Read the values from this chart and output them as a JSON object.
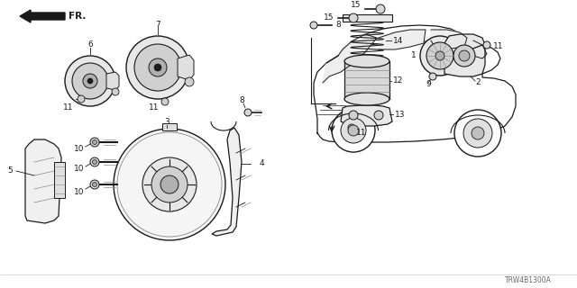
{
  "bg_color": "#ffffff",
  "dark": "#1a1a1a",
  "gray": "#888888",
  "part_number": "TRW4B1300A",
  "fig_width": 6.4,
  "fig_height": 3.2,
  "dpi": 100
}
